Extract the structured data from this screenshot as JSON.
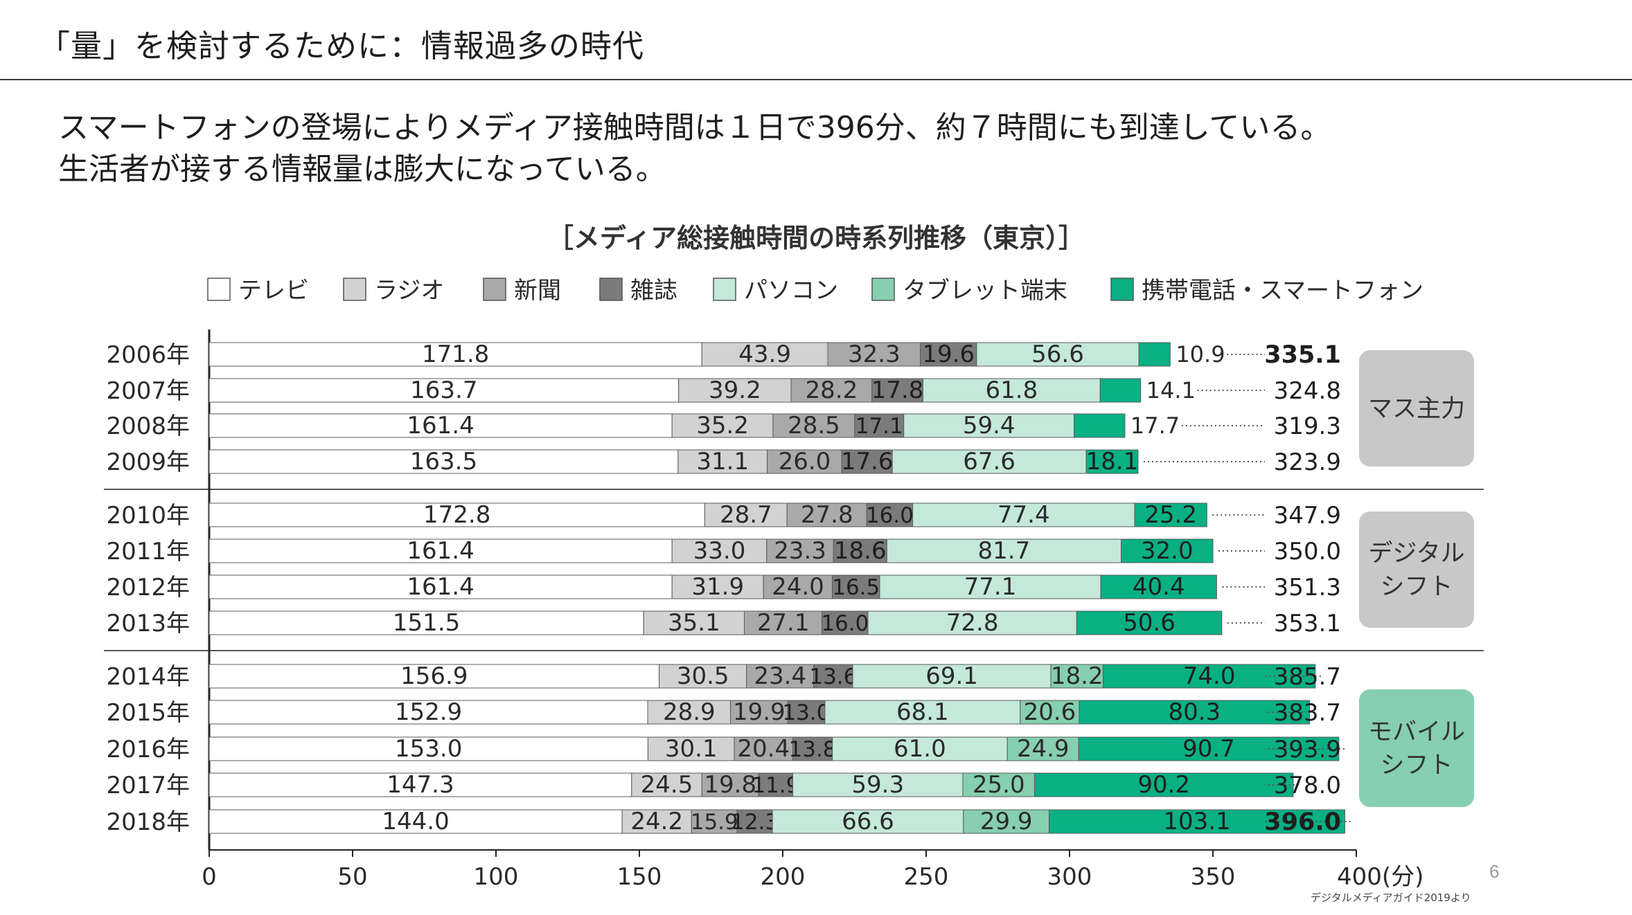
{
  "slide": {
    "title": "「量」を検討するために：情報過多の時代",
    "lead_line1": "スマートフォンの登場によりメディア接触時間は１日で396分、約７時間にも到達している。",
    "lead_line2": "生活者が接する情報量は膨大になっている。",
    "page_number": "6",
    "source": "デジタルメディアガイド2019より"
  },
  "chart_data": {
    "type": "bar",
    "orientation": "horizontal",
    "stacked": true,
    "title": "［メディア総接触時間の時系列推移（東京）］",
    "categories": [
      "2006年",
      "2007年",
      "2008年",
      "2009年",
      "2010年",
      "2011年",
      "2012年",
      "2013年",
      "2014年",
      "2015年",
      "2016年",
      "2017年",
      "2018年"
    ],
    "series": [
      {
        "name": "テレビ",
        "color": "#ffffff",
        "label_color": "#2a2a2a",
        "values": [
          171.8,
          163.7,
          161.4,
          163.5,
          172.8,
          161.4,
          161.4,
          151.5,
          156.9,
          152.9,
          153.0,
          147.3,
          144.0
        ]
      },
      {
        "name": "ラジオ",
        "color": "#d2d2d2",
        "label_color": "#2a2a2a",
        "values": [
          43.9,
          39.2,
          35.2,
          31.1,
          28.7,
          33.0,
          31.9,
          35.1,
          30.5,
          28.9,
          30.1,
          24.5,
          24.2
        ]
      },
      {
        "name": "新聞",
        "color": "#a9a9a9",
        "label_color": "#2a2a2a",
        "values": [
          32.3,
          28.2,
          28.5,
          26.0,
          27.8,
          23.3,
          24.0,
          27.1,
          23.4,
          19.9,
          20.4,
          19.8,
          15.9
        ]
      },
      {
        "name": "雑誌",
        "color": "#7b7b7b",
        "label_color": "#1e1e1e",
        "values": [
          19.6,
          17.8,
          17.1,
          17.6,
          16.0,
          18.6,
          16.5,
          16.0,
          13.6,
          13.0,
          13.8,
          11.9,
          12.3
        ]
      },
      {
        "name": "パソコン",
        "color": "#c4e8d9",
        "label_color": "#2a2a2a",
        "values": [
          56.6,
          61.8,
          59.4,
          67.6,
          77.4,
          81.7,
          77.1,
          72.8,
          69.1,
          68.1,
          61.0,
          59.3,
          66.6
        ]
      },
      {
        "name": "タブレット端末",
        "color": "#86cfb0",
        "label_color": "#2a2a2a",
        "values": [
          null,
          null,
          null,
          null,
          null,
          null,
          null,
          null,
          18.2,
          20.6,
          24.9,
          25.0,
          29.9
        ]
      },
      {
        "name": "携帯電話・スマートフォン",
        "color": "#08b084",
        "label_color": "#1e1e1e",
        "values": [
          10.9,
          14.1,
          17.7,
          18.1,
          25.2,
          32.0,
          40.4,
          50.6,
          74.0,
          80.3,
          90.7,
          90.2,
          103.1
        ]
      }
    ],
    "totals": [
      "335.1",
      "324.8",
      "319.3",
      "323.9",
      "347.9",
      "350.0",
      "351.3",
      "353.1",
      "385.7",
      "383.7",
      "393.9",
      "378.0",
      "396.0"
    ],
    "bold_totals": [
      "2006年",
      "2018年"
    ],
    "outside_labels": [
      "2006年",
      "2007年",
      "2008年"
    ],
    "xlim": [
      0,
      400
    ],
    "xticks": [
      "0",
      "50",
      "100",
      "150",
      "200",
      "250",
      "300",
      "350",
      "400(分)"
    ],
    "groups": [
      {
        "label_lines": [
          "マス主力"
        ],
        "color": "#c8c8c8",
        "years": [
          "2006年",
          "2007年",
          "2008年",
          "2009年"
        ]
      },
      {
        "label_lines": [
          "デジタル",
          "シフト"
        ],
        "color": "#c8c8c8",
        "years": [
          "2010年",
          "2011年",
          "2012年",
          "2013年"
        ]
      },
      {
        "label_lines": [
          "モバイル",
          "シフト"
        ],
        "color": "#86cfb0",
        "years": [
          "2014年",
          "2015年",
          "2016年",
          "2017年",
          "2018年"
        ]
      }
    ],
    "legend_position": "top"
  }
}
